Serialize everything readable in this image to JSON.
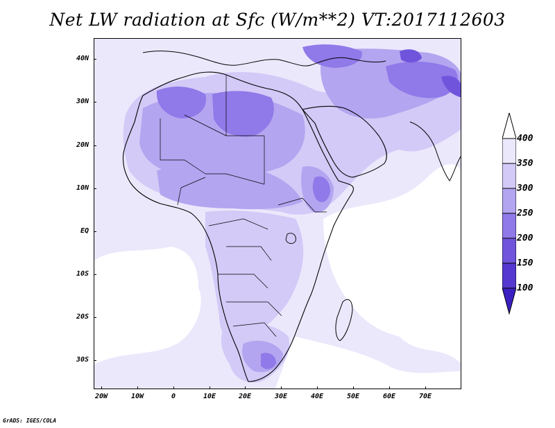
{
  "title": "Net LW radiation at Sfc (W/m**2) VT:2017112603",
  "credit": "GrADS: IGES/COLA",
  "axes": {
    "lat_labels": [
      "40N",
      "30N",
      "20N",
      "10N",
      "EQ",
      "10S",
      "20S",
      "30S"
    ],
    "lon_labels": [
      "20W",
      "10W",
      "0",
      "10E",
      "20E",
      "30E",
      "40E",
      "50E",
      "60E",
      "70E"
    ],
    "lat_range": [
      "36S",
      "45N"
    ],
    "lon_range": [
      "23W",
      "80E"
    ]
  },
  "colorbar": {
    "levels": [
      "100",
      "150",
      "200",
      "250",
      "300",
      "350",
      "400"
    ],
    "colors": [
      "#3b1fc0",
      "#5538cf",
      "#7055dc",
      "#9079e8",
      "#b3a5f0",
      "#d3caf7",
      "#ebe8fc",
      "#ffffff"
    ],
    "orientation": "vertical",
    "extends": "both"
  },
  "palette": {
    "white": "#ffffff",
    "lightest": "#ebe8fc",
    "light": "#d3caf7",
    "mid": "#b3a5f0",
    "strong": "#9079e8",
    "deep": "#7055dc",
    "coastline": "#000000"
  }
}
